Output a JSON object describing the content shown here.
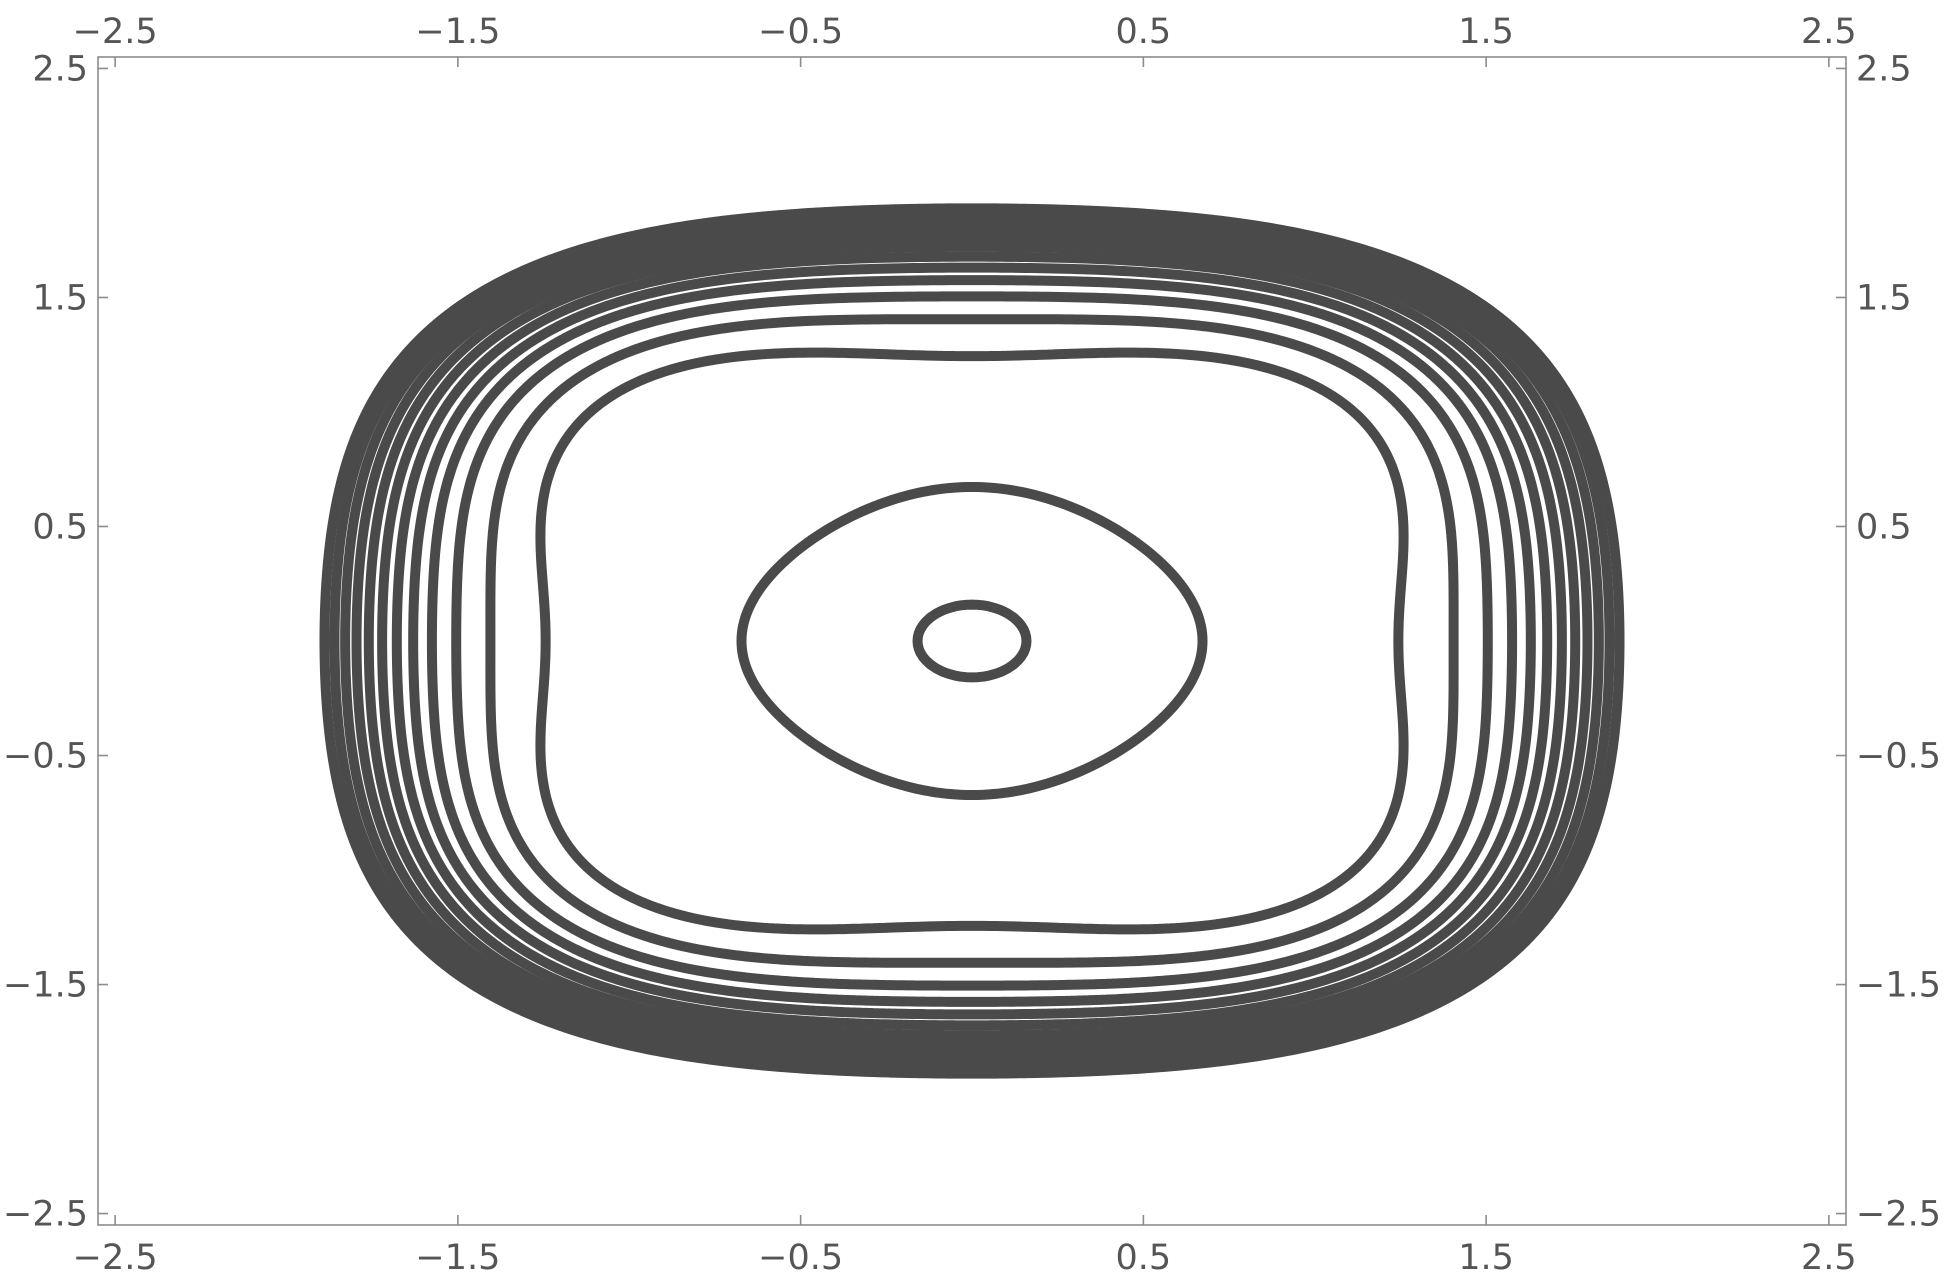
{
  "chart_data": {
    "type": "contour",
    "function": "f(x,y) = x^4 + y^4 - 2x^2 - 2y^2 + x^2 y^2",
    "xlim": [
      -2.55,
      2.55
    ],
    "ylim": [
      -2.55,
      2.55
    ],
    "bottom_ticks": [
      {
        "value": -2.5,
        "label": "−2.5"
      },
      {
        "value": -1.5,
        "label": "−1.5"
      },
      {
        "value": -0.5,
        "label": "−0.5"
      },
      {
        "value": 0.5,
        "label": "0.5"
      },
      {
        "value": 1.5,
        "label": "1.5"
      },
      {
        "value": 2.5,
        "label": "2.5"
      }
    ],
    "top_ticks": [
      {
        "value": -2.5,
        "label": "−2.5"
      },
      {
        "value": -1.5,
        "label": "−1.5"
      },
      {
        "value": -0.5,
        "label": "−0.5"
      },
      {
        "value": 0.5,
        "label": "0.5"
      },
      {
        "value": 1.5,
        "label": "1.5"
      },
      {
        "value": 2.5,
        "label": "2.5"
      }
    ],
    "left_ticks": [
      {
        "value": 2.5,
        "label": "2.5"
      },
      {
        "value": 1.5,
        "label": "1.5"
      },
      {
        "value": 0.5,
        "label": "0.5"
      },
      {
        "value": -0.5,
        "label": "−0.5"
      },
      {
        "value": -1.5,
        "label": "−1.5"
      },
      {
        "value": -2.5,
        "label": "−2.5"
      }
    ],
    "right_ticks": [
      {
        "value": 2.5,
        "label": "2.5"
      },
      {
        "value": 1.5,
        "label": "1.5"
      },
      {
        "value": 0.5,
        "label": "0.5"
      },
      {
        "value": -0.5,
        "label": "−0.5"
      },
      {
        "value": -1.5,
        "label": "−1.5"
      },
      {
        "value": -2.5,
        "label": "−2.5"
      }
    ],
    "contour_levels": [
      -0.7,
      -0.05,
      0.6,
      1.2,
      1.75,
      2.3,
      2.85,
      3.4,
      3.95,
      4.5,
      5.05,
      5.6
    ],
    "line_color": "#4a4a4a",
    "frame_color": "#8c8c8c",
    "label_color": "#555555",
    "grid": false
  }
}
